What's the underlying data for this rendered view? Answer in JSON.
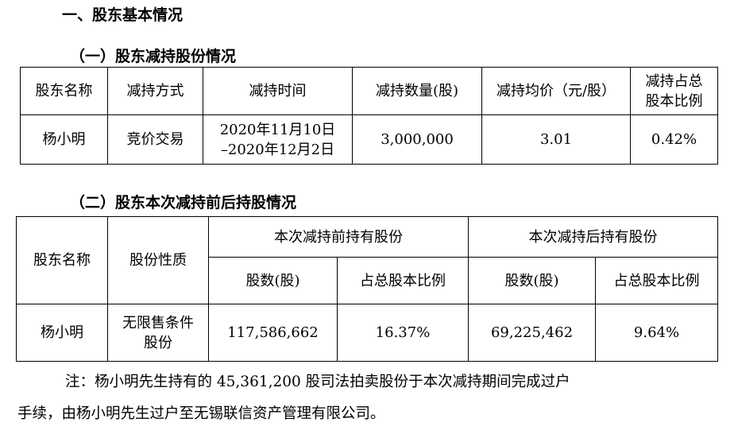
{
  "section_title": "一、股东基本情况",
  "sub1_title": "（一）股东减持股份情况",
  "sub2_title": "（二）股东本次减持前后持股情况",
  "table1": {
    "headers": [
      "股东名称",
      "减持方式",
      "减持时间",
      "减持数量(股)",
      "减持均价（元/股）",
      "减持占总",
      "股本比例"
    ],
    "row": {
      "name": "杨小明",
      "method": "竞价交易",
      "time_start": "2020年11月10日",
      "time_end": "–2020年12月2日",
      "quantity": "3,000,000",
      "avg_price": "3.01",
      "ratio": "0.42%"
    }
  },
  "table2": {
    "headers": {
      "name": "股东名称",
      "nature": "股份性质",
      "before": "本次减持前持有股份",
      "after": "本次减持后持有股份",
      "shares": "股数(股)",
      "ratio": "占总股本比例"
    },
    "row": {
      "name": "杨小明",
      "nature_line1": "无限售条件",
      "nature_line2": "股份",
      "before_shares": "117,586,662",
      "before_ratio": "16.37%",
      "after_shares": "69,225,462",
      "after_ratio": "9.64%"
    }
  },
  "note_line1": "注：杨小明先生持有的 45,361,200 股司法拍卖股份于本次减持期间完成过户",
  "note_line2": "手续，由杨小明先生过户至无锡联信资产管理有限公司。"
}
